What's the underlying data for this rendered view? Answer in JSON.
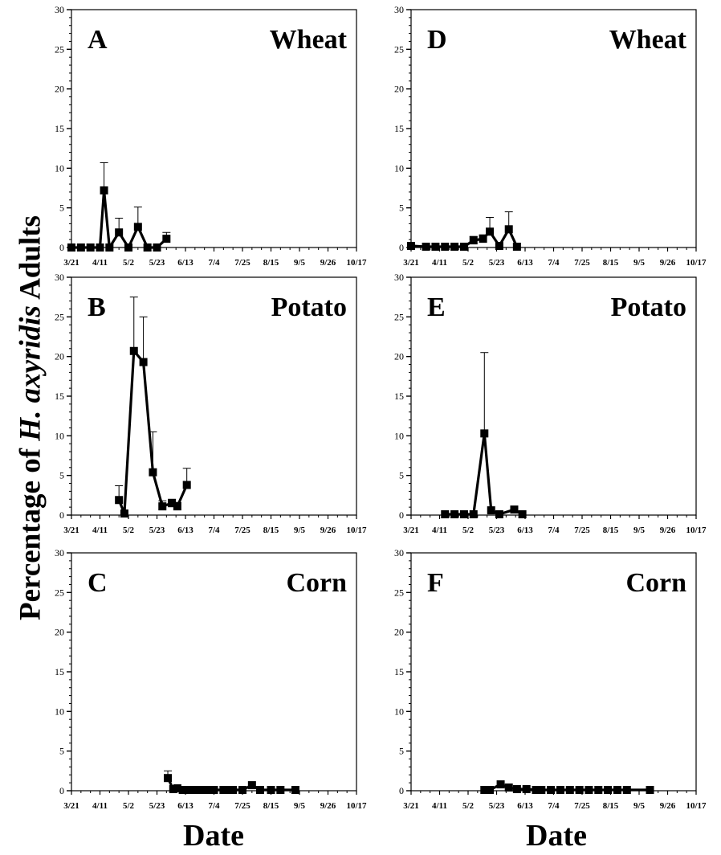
{
  "figure": {
    "y_axis_title": {
      "prefix": "Percentage of ",
      "italic": "H. axyridis",
      "suffix": " Adults"
    },
    "x_axis_titles": [
      "Date",
      "Date"
    ]
  },
  "chart_data": [
    {
      "type": "line",
      "panel_letter": "A",
      "crop": "Wheat",
      "xlabel": "Date",
      "ylabel": "Percentage of H. axyridis Adults",
      "ylim": [
        0,
        30
      ],
      "yticks": [
        0,
        5,
        10,
        15,
        20,
        25,
        30
      ],
      "x_tick_labels": [
        "3/21",
        "4/11",
        "5/2",
        "5/23",
        "6/13",
        "7/4",
        "7/25",
        "8/15",
        "9/5",
        "9/26",
        "10/17"
      ],
      "x_tick_dates": [
        "2000-03-21",
        "2000-04-11",
        "2000-05-02",
        "2000-05-23",
        "2000-06-13",
        "2000-07-04",
        "2000-07-25",
        "2000-08-15",
        "2000-09-05",
        "2000-09-26",
        "2000-10-17"
      ],
      "grid": false,
      "series": [
        {
          "x": [
            "2000-03-21",
            "2000-03-28",
            "2000-04-04",
            "2000-04-11",
            "2000-04-14",
            "2000-04-18",
            "2000-04-25",
            "2000-05-02",
            "2000-05-09",
            "2000-05-16",
            "2000-05-23",
            "2000-05-30"
          ],
          "y": [
            0,
            0,
            0,
            0,
            7.2,
            0,
            1.9,
            0,
            2.6,
            0,
            0,
            1.1
          ],
          "error": [
            0,
            0,
            0,
            0,
            3.5,
            0,
            1.8,
            0,
            2.5,
            0,
            0,
            0.8
          ]
        }
      ]
    },
    {
      "type": "line",
      "panel_letter": "B",
      "crop": "Potato",
      "xlabel": "Date",
      "ylabel": "Percentage of H. axyridis Adults",
      "ylim": [
        0,
        30
      ],
      "yticks": [
        0,
        5,
        10,
        15,
        20,
        25,
        30
      ],
      "x_tick_labels": [
        "3/21",
        "4/11",
        "5/2",
        "5/23",
        "6/13",
        "7/4",
        "7/25",
        "8/15",
        "9/5",
        "9/26",
        "10/17"
      ],
      "x_tick_dates": [
        "2000-03-21",
        "2000-04-11",
        "2000-05-02",
        "2000-05-23",
        "2000-06-13",
        "2000-07-04",
        "2000-07-25",
        "2000-08-15",
        "2000-09-05",
        "2000-09-26",
        "2000-10-17"
      ],
      "grid": false,
      "series": [
        {
          "x": [
            "2000-04-25",
            "2000-04-29",
            "2000-05-06",
            "2000-05-13",
            "2000-05-20",
            "2000-05-27",
            "2000-06-03",
            "2000-06-07",
            "2000-06-14"
          ],
          "y": [
            1.9,
            0.2,
            20.7,
            19.3,
            5.4,
            1.1,
            1.5,
            1.1,
            3.8
          ],
          "error": [
            1.8,
            0,
            6.8,
            5.7,
            5.1,
            0.7,
            0.5,
            0.5,
            2.1
          ]
        }
      ]
    },
    {
      "type": "line",
      "panel_letter": "C",
      "crop": "Corn",
      "xlabel": "Date",
      "ylabel": "Percentage of H. axyridis Adults",
      "ylim": [
        0,
        30
      ],
      "yticks": [
        0,
        5,
        10,
        15,
        20,
        25,
        30
      ],
      "x_tick_labels": [
        "3/21",
        "4/11",
        "5/2",
        "5/23",
        "6/13",
        "7/4",
        "7/25",
        "8/15",
        "9/5",
        "9/26",
        "10/17"
      ],
      "x_tick_dates": [
        "2000-03-21",
        "2000-04-11",
        "2000-05-02",
        "2000-05-23",
        "2000-06-13",
        "2000-07-04",
        "2000-07-25",
        "2000-08-15",
        "2000-09-05",
        "2000-09-26",
        "2000-10-17"
      ],
      "grid": false,
      "series": [
        {
          "x": [
            "2000-05-31",
            "2000-06-04",
            "2000-06-07",
            "2000-06-11",
            "2000-06-16",
            "2000-06-21",
            "2000-06-26",
            "2000-07-01",
            "2000-07-04",
            "2000-07-11",
            "2000-07-15",
            "2000-07-18",
            "2000-07-25",
            "2000-08-01",
            "2000-08-07",
            "2000-08-15",
            "2000-08-22",
            "2000-09-02"
          ],
          "y": [
            1.6,
            0.2,
            0.3,
            0.1,
            0.1,
            0.1,
            0.1,
            0.1,
            0.1,
            0.1,
            0.1,
            0.1,
            0.1,
            0.7,
            0.1,
            0.1,
            0.1,
            0.1
          ],
          "error": [
            0.9,
            0,
            0,
            0,
            0,
            0,
            0,
            0,
            0,
            0,
            0,
            0,
            0,
            0,
            0,
            0,
            0,
            0
          ]
        }
      ]
    },
    {
      "type": "line",
      "panel_letter": "D",
      "crop": "Wheat",
      "xlabel": "Date",
      "ylabel": "Percentage of H. axyridis Adults",
      "ylim": [
        0,
        30
      ],
      "yticks": [
        0,
        5,
        10,
        15,
        20,
        25,
        30
      ],
      "x_tick_labels": [
        "3/21",
        "4/11",
        "5/2",
        "5/23",
        "6/13",
        "7/4",
        "7/25",
        "8/15",
        "9/5",
        "9/26",
        "10/17"
      ],
      "x_tick_dates": [
        "2000-03-21",
        "2000-04-11",
        "2000-05-02",
        "2000-05-23",
        "2000-06-13",
        "2000-07-04",
        "2000-07-25",
        "2000-08-15",
        "2000-09-05",
        "2000-09-26",
        "2000-10-17"
      ],
      "grid": false,
      "series": [
        {
          "x": [
            "2000-03-21",
            "2000-04-01",
            "2000-04-08",
            "2000-04-15",
            "2000-04-22",
            "2000-04-29",
            "2000-05-06",
            "2000-05-13",
            "2000-05-18",
            "2000-05-25",
            "2000-06-01",
            "2000-06-07"
          ],
          "y": [
            0.2,
            0.1,
            0.1,
            0.1,
            0.1,
            0.1,
            0.9,
            1.1,
            2.0,
            0.2,
            2.3,
            0.1
          ],
          "error": [
            0,
            0,
            0,
            0,
            0,
            0,
            0.5,
            0.5,
            1.8,
            0,
            2.2,
            0
          ]
        }
      ]
    },
    {
      "type": "line",
      "panel_letter": "E",
      "crop": "Potato",
      "xlabel": "Date",
      "ylabel": "Percentage of H. axyridis Adults",
      "ylim": [
        0,
        30
      ],
      "yticks": [
        0,
        5,
        10,
        15,
        20,
        25,
        30
      ],
      "x_tick_labels": [
        "3/21",
        "4/11",
        "5/2",
        "5/23",
        "6/13",
        "7/4",
        "7/25",
        "8/15",
        "9/5",
        "9/26",
        "10/17"
      ],
      "x_tick_dates": [
        "2000-03-21",
        "2000-04-11",
        "2000-05-02",
        "2000-05-23",
        "2000-06-13",
        "2000-07-04",
        "2000-07-25",
        "2000-08-15",
        "2000-09-05",
        "2000-09-26",
        "2000-10-17"
      ],
      "grid": false,
      "series": [
        {
          "x": [
            "2000-04-15",
            "2000-04-22",
            "2000-04-29",
            "2000-05-06",
            "2000-05-14",
            "2000-05-19",
            "2000-05-25",
            "2000-06-05",
            "2000-06-11"
          ],
          "y": [
            0.1,
            0.1,
            0.1,
            0.1,
            10.3,
            0.6,
            0.1,
            0.7,
            0.1
          ],
          "error": [
            0,
            0,
            0,
            0,
            10.2,
            0,
            0,
            0,
            0
          ]
        }
      ]
    },
    {
      "type": "line",
      "panel_letter": "F",
      "crop": "Corn",
      "xlabel": "Date",
      "ylabel": "Percentage of H. axyridis Adults",
      "ylim": [
        0,
        30
      ],
      "yticks": [
        0,
        5,
        10,
        15,
        20,
        25,
        30
      ],
      "x_tick_labels": [
        "3/21",
        "4/11",
        "5/2",
        "5/23",
        "6/13",
        "7/4",
        "7/25",
        "8/15",
        "9/5",
        "9/26",
        "10/17"
      ],
      "x_tick_dates": [
        "2000-03-21",
        "2000-04-11",
        "2000-05-02",
        "2000-05-23",
        "2000-06-13",
        "2000-07-04",
        "2000-07-25",
        "2000-08-15",
        "2000-09-05",
        "2000-09-26",
        "2000-10-17"
      ],
      "grid": false,
      "series": [
        {
          "x": [
            "2000-05-14",
            "2000-05-18",
            "2000-05-26",
            "2000-06-01",
            "2000-06-07",
            "2000-06-14",
            "2000-06-21",
            "2000-06-25",
            "2000-07-02",
            "2000-07-09",
            "2000-07-16",
            "2000-07-23",
            "2000-07-30",
            "2000-08-06",
            "2000-08-13",
            "2000-08-20",
            "2000-08-27",
            "2000-09-13"
          ],
          "y": [
            0.1,
            0.1,
            0.8,
            0.4,
            0.2,
            0.2,
            0.1,
            0.1,
            0.1,
            0.1,
            0.1,
            0.1,
            0.1,
            0.1,
            0.1,
            0.1,
            0.1,
            0.1
          ],
          "error": [
            0,
            0,
            0,
            0,
            0,
            0,
            0,
            0,
            0,
            0,
            0,
            0,
            0,
            0,
            0,
            0,
            0,
            0
          ]
        }
      ]
    }
  ]
}
